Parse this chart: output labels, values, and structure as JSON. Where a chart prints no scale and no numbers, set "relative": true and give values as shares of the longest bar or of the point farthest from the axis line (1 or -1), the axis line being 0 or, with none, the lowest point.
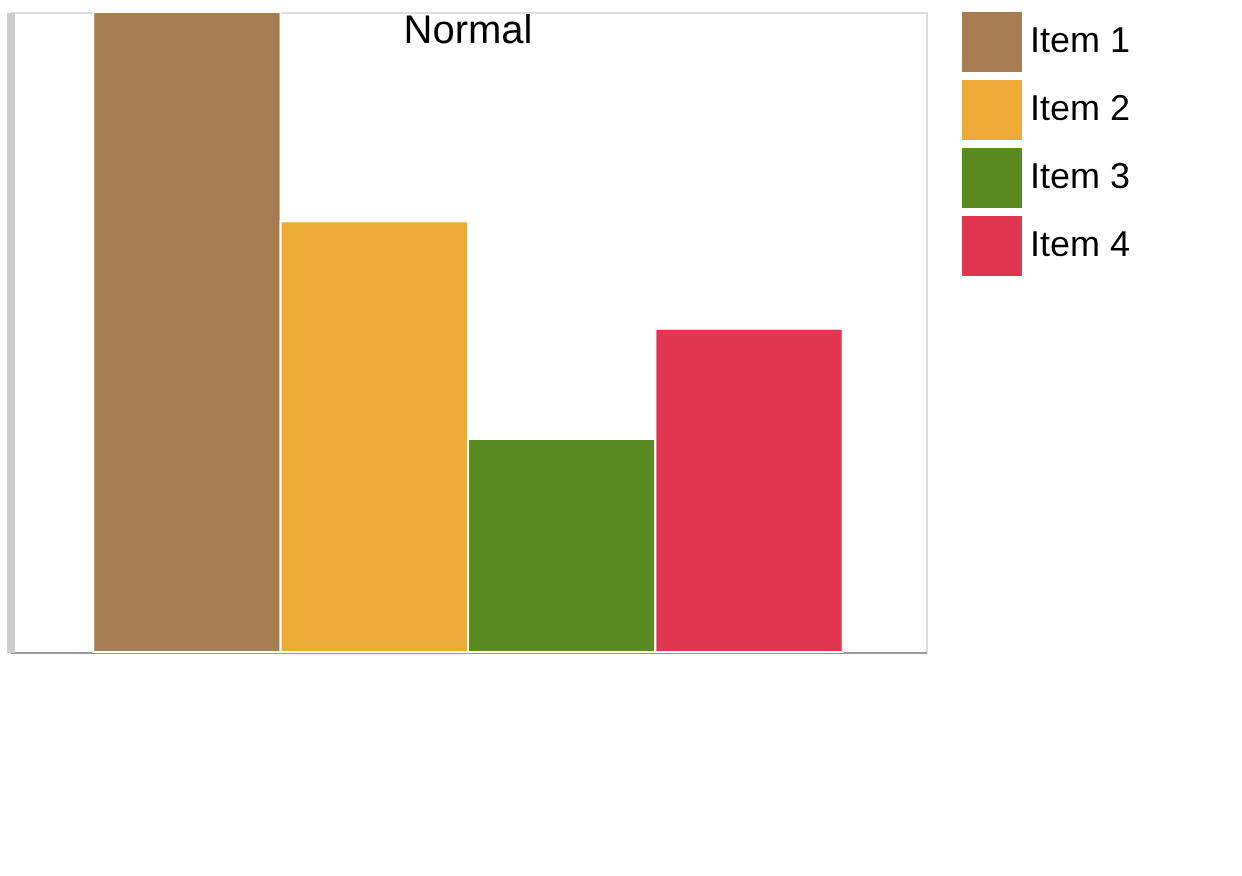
{
  "chart_data": {
    "type": "bar",
    "title": "Normal",
    "relative": true,
    "categories": [
      null
    ],
    "legend": "top right",
    "grid": false,
    "series": [
      {
        "name": "Item 1",
        "color": "#a67c52",
        "values": [
          1
        ]
      },
      {
        "name": "Item 2",
        "color": "#eeaa36",
        "values": [
          0.673
        ]
      },
      {
        "name": "Item 3",
        "color": "#5a8a22",
        "values": [
          0.333
        ]
      },
      {
        "name": "Item 4",
        "color": "#e0354f",
        "values": [
          0.505
        ]
      }
    ]
  }
}
